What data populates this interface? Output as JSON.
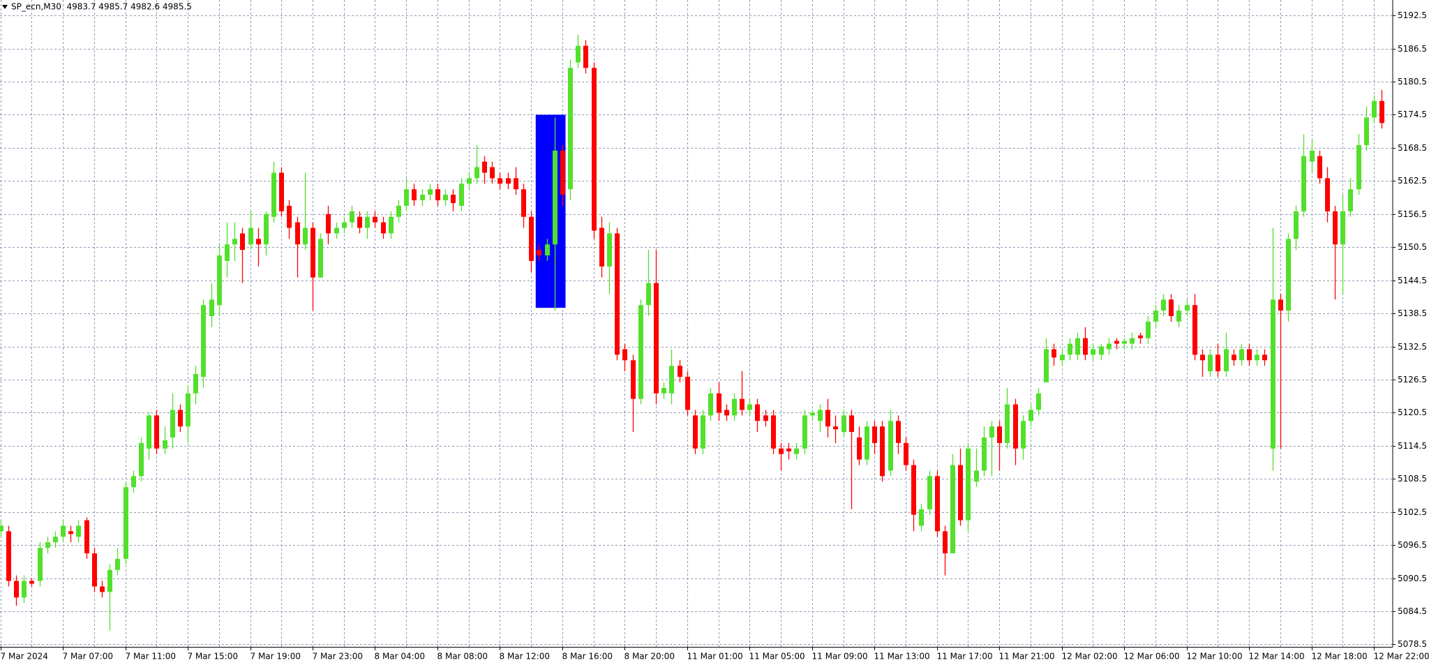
{
  "chart_data": {
    "type": "candlestick",
    "title": "SP_ecn,M30  4983.7 4985.7 4982.6 4985.5",
    "up_color": "#52e02c",
    "down_color": "#ff0000",
    "grid": true,
    "ylim": [
      5078.05,
      5195.3
    ],
    "yticks": [
      5078.5,
      5084.5,
      5090.5,
      5096.5,
      5102.5,
      5108.5,
      5114.5,
      5120.5,
      5126.5,
      5132.5,
      5138.5,
      5144.5,
      5150.5,
      5156.5,
      5162.5,
      5168.5,
      5174.5,
      5180.5,
      5186.5,
      5192.5
    ],
    "rectangle": {
      "color": "#0000ff",
      "price": [
        5139.5,
        5174.5
      ],
      "candles": [
        69,
        72
      ]
    },
    "categories": [
      "7 Mar 2024",
      null,
      null,
      null,
      null,
      null,
      null,
      null,
      "7 Mar 07:00",
      null,
      null,
      null,
      null,
      null,
      null,
      null,
      "7 Mar 11:00",
      null,
      null,
      null,
      null,
      null,
      null,
      null,
      "7 Mar 15:00",
      null,
      null,
      null,
      null,
      null,
      null,
      null,
      "7 Mar 19:00",
      null,
      null,
      null,
      null,
      null,
      null,
      null,
      "7 Mar 23:00",
      null,
      null,
      null,
      null,
      null,
      null,
      null,
      "8 Mar 04:00",
      null,
      null,
      null,
      null,
      null,
      null,
      null,
      "8 Mar 08:00",
      null,
      null,
      null,
      null,
      null,
      null,
      null,
      "8 Mar 12:00",
      null,
      null,
      null,
      null,
      null,
      null,
      null,
      "8 Mar 16:00",
      null,
      null,
      null,
      null,
      null,
      null,
      null,
      "8 Mar 20:00",
      null,
      null,
      null,
      null,
      null,
      null,
      null,
      "11 Mar 01:00",
      null,
      null,
      null,
      null,
      null,
      null,
      null,
      "11 Mar 05:00",
      null,
      null,
      null,
      null,
      null,
      null,
      null,
      "11 Mar 09:00",
      null,
      null,
      null,
      null,
      null,
      null,
      null,
      "11 Mar 13:00",
      null,
      null,
      null,
      null,
      null,
      null,
      null,
      "11 Mar 17:00",
      null,
      null,
      null,
      null,
      null,
      null,
      null,
      "11 Mar 21:00",
      null,
      null,
      null,
      null,
      null,
      null,
      null,
      "12 Mar 02:00",
      null,
      null,
      null,
      null,
      null,
      null,
      null,
      "12 Mar 06:00",
      null,
      null,
      null,
      null,
      null,
      null,
      null,
      "12 Mar 10:00",
      null,
      null,
      null,
      null,
      null,
      null,
      null,
      "12 Mar 14:00",
      null,
      null,
      null,
      null,
      null,
      null,
      null,
      "12 Mar 18:00",
      null,
      null,
      null,
      null,
      null,
      null,
      null,
      "12 Mar 22:00",
      null
    ],
    "ohlc": [
      [
        5099,
        5101,
        5098,
        5100
      ],
      [
        5099,
        5100,
        5089,
        5090
      ],
      [
        5090,
        5091,
        5085.5,
        5087
      ],
      [
        5087,
        5091,
        5086,
        5090
      ],
      [
        5090,
        5090.5,
        5089,
        5089.5
      ],
      [
        5090,
        5097,
        5089,
        5096
      ],
      [
        5096,
        5098,
        5095,
        5097
      ],
      [
        5097,
        5099,
        5096,
        5098
      ],
      [
        5098,
        5101,
        5097,
        5100
      ],
      [
        5099,
        5100,
        5097,
        5098.5
      ],
      [
        5098,
        5101,
        5097,
        5100
      ],
      [
        5101,
        5101.5,
        5094,
        5095
      ],
      [
        5095,
        5096,
        5088,
        5089
      ],
      [
        5089,
        5090,
        5087,
        5088
      ],
      [
        5088,
        5093,
        5081,
        5092
      ],
      [
        5092,
        5096,
        5091,
        5094
      ],
      [
        5094,
        5108,
        5093,
        5107
      ],
      [
        5107,
        5110,
        5106,
        5109
      ],
      [
        5109,
        5116,
        5108,
        5115
      ],
      [
        5114,
        5120.5,
        5112,
        5120
      ],
      [
        5120,
        5121,
        5113,
        5114
      ],
      [
        5114,
        5118,
        5113,
        5115.5
      ],
      [
        5116,
        5124,
        5114,
        5121
      ],
      [
        5121,
        5122,
        5117,
        5118
      ],
      [
        5118,
        5125.5,
        5115,
        5124
      ],
      [
        5124,
        5129,
        5122,
        5127.5
      ],
      [
        5127,
        5141,
        5125,
        5140
      ],
      [
        5138,
        5144,
        5136,
        5141
      ],
      [
        5140,
        5151,
        5138,
        5149
      ],
      [
        5148,
        5155,
        5145,
        5151
      ],
      [
        5151,
        5155,
        5148,
        5152
      ],
      [
        5153,
        5154,
        5144,
        5150
      ],
      [
        5151,
        5157,
        5150,
        5154
      ],
      [
        5152,
        5154,
        5147,
        5151
      ],
      [
        5151,
        5157,
        5149,
        5156.5
      ],
      [
        5156,
        5166,
        5155,
        5164
      ],
      [
        5164,
        5165,
        5156,
        5157
      ],
      [
        5158,
        5159,
        5152,
        5154
      ],
      [
        5155,
        5156,
        5145,
        5151
      ],
      [
        5151,
        5164,
        5150,
        5154
      ],
      [
        5154,
        5155,
        5139,
        5145
      ],
      [
        5145,
        5153,
        5145,
        5152
      ],
      [
        5156.5,
        5158,
        5151,
        5153
      ],
      [
        5153,
        5155,
        5152,
        5154
      ],
      [
        5154,
        5156,
        5153,
        5155
      ],
      [
        5155,
        5158,
        5154,
        5157
      ],
      [
        5156,
        5157,
        5153,
        5154
      ],
      [
        5154,
        5157,
        5152,
        5156
      ],
      [
        5156,
        5157,
        5154,
        5155
      ],
      [
        5155,
        5156,
        5152,
        5153
      ],
      [
        5153,
        5157,
        5152,
        5156
      ],
      [
        5156,
        5159,
        5155,
        5158
      ],
      [
        5158,
        5163,
        5157,
        5161
      ],
      [
        5161,
        5162,
        5158,
        5159
      ],
      [
        5159,
        5161,
        5158,
        5160
      ],
      [
        5160,
        5162,
        5159,
        5161
      ],
      [
        5161,
        5162,
        5158,
        5159
      ],
      [
        5159,
        5161,
        5158,
        5160
      ],
      [
        5160,
        5161,
        5157,
        5158.5
      ],
      [
        5158,
        5163,
        5157,
        5162
      ],
      [
        5162,
        5164,
        5161,
        5163
      ],
      [
        5163,
        5169,
        5162,
        5165
      ],
      [
        5166,
        5167,
        5162,
        5164
      ],
      [
        5165,
        5166,
        5162,
        5163
      ],
      [
        5163,
        5164,
        5161,
        5162
      ],
      [
        5163,
        5164,
        5161,
        5162
      ],
      [
        5163,
        5165,
        5160,
        5161
      ],
      [
        5161,
        5162,
        5154,
        5156
      ],
      [
        5156,
        5157,
        5146,
        5148
      ],
      [
        5150,
        5151,
        5148,
        5149
      ],
      [
        5149,
        5152,
        5148,
        5151
      ],
      [
        5151,
        5174,
        5139,
        5168
      ],
      [
        5168,
        5169,
        5158,
        5160
      ],
      [
        5161,
        5184.5,
        5159,
        5183
      ],
      [
        5184,
        5189,
        5183,
        5187
      ],
      [
        5187,
        5188,
        5182,
        5183
      ],
      [
        5183,
        5184,
        5152,
        5153.5
      ],
      [
        5154,
        5156,
        5145,
        5147
      ],
      [
        5147,
        5155,
        5142,
        5153
      ],
      [
        5153,
        5154,
        5130,
        5131
      ],
      [
        5132,
        5133,
        5128,
        5130
      ],
      [
        5130,
        5131,
        5117,
        5123
      ],
      [
        5123,
        5141,
        5122,
        5140
      ],
      [
        5140,
        5150,
        5138,
        5144
      ],
      [
        5144,
        5150,
        5122,
        5124
      ],
      [
        5124,
        5126,
        5123,
        5125
      ],
      [
        5124,
        5132,
        5122,
        5129
      ],
      [
        5129,
        5130,
        5126,
        5127
      ],
      [
        5127,
        5128,
        5120,
        5121
      ],
      [
        5120,
        5121,
        5113,
        5114
      ],
      [
        5114,
        5121,
        5113,
        5120
      ],
      [
        5120,
        5125,
        5119,
        5124
      ],
      [
        5124,
        5126,
        5119,
        5120.5
      ],
      [
        5121,
        5122,
        5119,
        5120
      ],
      [
        5120,
        5124,
        5119,
        5123
      ],
      [
        5123,
        5128,
        5120,
        5121
      ],
      [
        5121,
        5123,
        5120,
        5122
      ],
      [
        5122,
        5123,
        5117,
        5119
      ],
      [
        5120,
        5121,
        5118,
        5119
      ],
      [
        5120,
        5121,
        5113,
        5114
      ],
      [
        5114,
        5115,
        5110,
        5113
      ],
      [
        5114,
        5115,
        5112,
        5113.5
      ],
      [
        5113,
        5115,
        5112,
        5114
      ],
      [
        5114,
        5121,
        5113,
        5120
      ],
      [
        5120,
        5121,
        5119,
        5120.5
      ],
      [
        5119,
        5122,
        5117,
        5121
      ],
      [
        5121,
        5123,
        5116,
        5118
      ],
      [
        5118,
        5120,
        5115,
        5117.5
      ],
      [
        5117,
        5121,
        5116,
        5120
      ],
      [
        5120,
        5121,
        5103,
        5117
      ],
      [
        5116,
        5118,
        5111,
        5112
      ],
      [
        5112,
        5119,
        5111,
        5118
      ],
      [
        5118,
        5119,
        5113,
        5115
      ],
      [
        5118,
        5119,
        5108,
        5109
      ],
      [
        5110,
        5121,
        5109,
        5119
      ],
      [
        5119,
        5120,
        5113,
        5115
      ],
      [
        5115,
        5116,
        5110,
        5111
      ],
      [
        5111,
        5112,
        5099,
        5102
      ],
      [
        5100,
        5104,
        5099,
        5103
      ],
      [
        5103,
        5110,
        5102,
        5109
      ],
      [
        5109,
        5110,
        5098,
        5099
      ],
      [
        5099,
        5100,
        5091,
        5095
      ],
      [
        5095,
        5113,
        5095,
        5111
      ],
      [
        5111,
        5114,
        5100,
        5101
      ],
      [
        5101,
        5115,
        5099,
        5114
      ],
      [
        5108,
        5114,
        5107,
        5110
      ],
      [
        5110,
        5118,
        5109,
        5116
      ],
      [
        5116,
        5119,
        5109,
        5118
      ],
      [
        5118,
        5119,
        5110,
        5115
      ],
      [
        5115,
        5125,
        5114,
        5122
      ],
      [
        5122,
        5123,
        5111,
        5114
      ],
      [
        5114,
        5120,
        5112,
        5119
      ],
      [
        5119,
        5122,
        5118,
        5121
      ],
      [
        5121,
        5125,
        5120,
        5124
      ],
      [
        5126,
        5134,
        5126,
        5132
      ],
      [
        5132,
        5133,
        5129,
        5130.5
      ],
      [
        5130,
        5132,
        5129,
        5131
      ],
      [
        5131,
        5134,
        5130,
        5133
      ],
      [
        5131,
        5135,
        5130,
        5134
      ],
      [
        5134,
        5136,
        5130,
        5131
      ],
      [
        5131,
        5133,
        5130,
        5132
      ],
      [
        5131,
        5133,
        5130,
        5132.5
      ],
      [
        5132,
        5134,
        5131,
        5133
      ],
      [
        5133.5,
        5134,
        5132,
        5133
      ],
      [
        5133,
        5134,
        5132,
        5133.5
      ],
      [
        5133,
        5135,
        5132,
        5134
      ],
      [
        5134.5,
        5135,
        5133,
        5134
      ],
      [
        5134,
        5138,
        5133,
        5137
      ],
      [
        5137,
        5140,
        5136,
        5139
      ],
      [
        5139,
        5142,
        5138,
        5141
      ],
      [
        5141,
        5142,
        5137,
        5138
      ],
      [
        5137,
        5140,
        5136,
        5139
      ],
      [
        5139,
        5141,
        5138,
        5140
      ],
      [
        5140,
        5142,
        5130,
        5131
      ],
      [
        5131,
        5132,
        5127,
        5130
      ],
      [
        5128,
        5132,
        5127,
        5131
      ],
      [
        5131,
        5133,
        5127,
        5128
      ],
      [
        5128,
        5135,
        5127,
        5132
      ],
      [
        5131,
        5132,
        5129,
        5130
      ],
      [
        5130,
        5133,
        5129,
        5132
      ],
      [
        5132,
        5133,
        5129,
        5130
      ],
      [
        5130,
        5132,
        5129,
        5131
      ],
      [
        5131,
        5132,
        5129,
        5130
      ],
      [
        5114,
        5154,
        5110,
        5141
      ],
      [
        5141,
        5142,
        5114,
        5139
      ],
      [
        5139,
        5153,
        5137,
        5152
      ],
      [
        5152,
        5158,
        5150,
        5157
      ],
      [
        5157,
        5171,
        5156,
        5167
      ],
      [
        5166,
        5170,
        5164,
        5168
      ],
      [
        5167,
        5168,
        5162,
        5163
      ],
      [
        5163,
        5165,
        5155,
        5157
      ],
      [
        5157,
        5158,
        5141,
        5151
      ],
      [
        5151,
        5160,
        5142,
        5157
      ],
      [
        5157,
        5163,
        5156,
        5161
      ],
      [
        5161,
        5171,
        5160,
        5169
      ],
      [
        5169,
        5176,
        5168,
        5174
      ],
      [
        5174,
        5178,
        5173,
        5177
      ],
      [
        5177,
        5179,
        5172,
        5173
      ]
    ]
  }
}
